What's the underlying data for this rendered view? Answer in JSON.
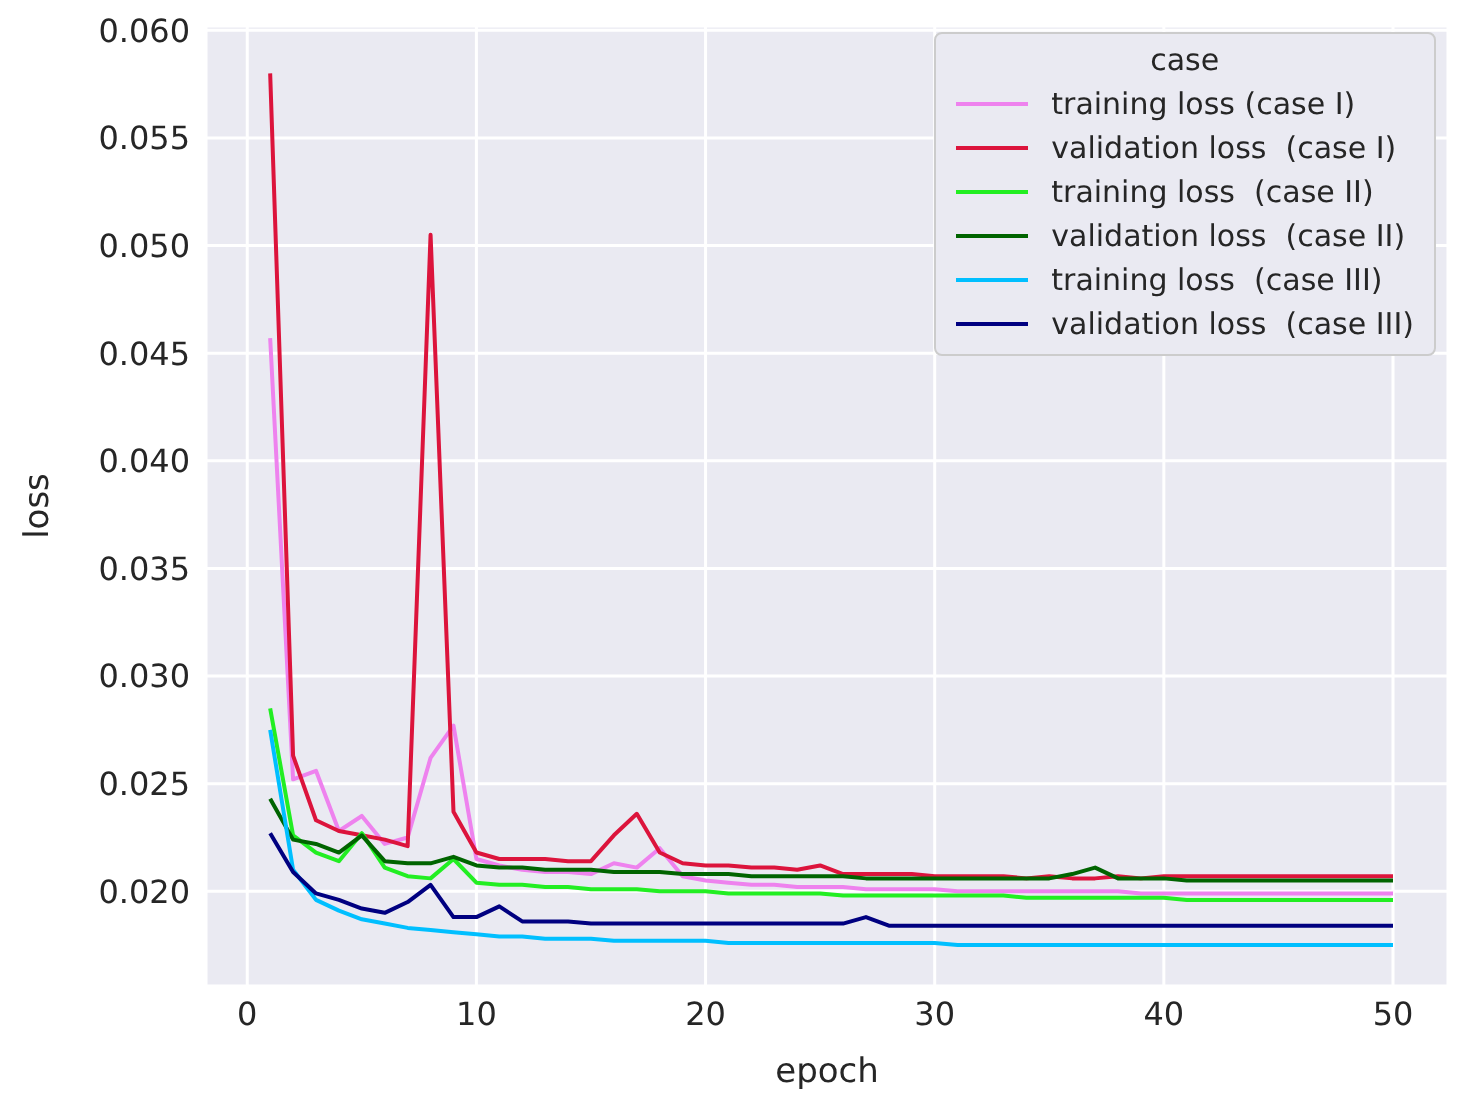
{
  "chart_data": {
    "type": "line",
    "xlabel": "epoch",
    "ylabel": "loss",
    "legend_title": "case",
    "grid": true,
    "legend": "top right",
    "x": [
      1,
      2,
      3,
      4,
      5,
      6,
      7,
      8,
      9,
      10,
      11,
      12,
      13,
      14,
      15,
      16,
      17,
      18,
      19,
      20,
      21,
      22,
      23,
      24,
      25,
      26,
      27,
      28,
      29,
      30,
      31,
      32,
      33,
      34,
      35,
      36,
      37,
      38,
      39,
      40,
      41,
      42,
      43,
      44,
      45,
      46,
      47,
      48,
      49,
      50
    ],
    "xlim": [
      -1.8,
      52.4
    ],
    "xticks": [
      0,
      10,
      20,
      30,
      40,
      50
    ],
    "ylim": [
      0.0156,
      0.0602
    ],
    "yticks": [
      {
        "value": 0.02,
        "label": "0.020"
      },
      {
        "value": 0.025,
        "label": "0.025"
      },
      {
        "value": 0.03,
        "label": "0.030"
      },
      {
        "value": 0.035,
        "label": "0.035"
      },
      {
        "value": 0.04,
        "label": "0.040"
      },
      {
        "value": 0.045,
        "label": "0.045"
      },
      {
        "value": 0.05,
        "label": "0.050"
      },
      {
        "value": 0.055,
        "label": "0.055"
      },
      {
        "value": 0.06,
        "label": "0.060"
      }
    ],
    "series": [
      {
        "name": "training loss (case I)",
        "color": "#ee82ee",
        "values": [
          0.0457,
          0.0252,
          0.0256,
          0.0228,
          0.0235,
          0.0222,
          0.0225,
          0.0262,
          0.0277,
          0.0215,
          0.0212,
          0.021,
          0.0209,
          0.0209,
          0.0208,
          0.0213,
          0.0211,
          0.022,
          0.0207,
          0.0205,
          0.0204,
          0.0203,
          0.0203,
          0.0202,
          0.0202,
          0.0202,
          0.0201,
          0.0201,
          0.0201,
          0.0201,
          0.02,
          0.02,
          0.02,
          0.02,
          0.02,
          0.02,
          0.02,
          0.02,
          0.0199,
          0.0199,
          0.0199,
          0.0199,
          0.0199,
          0.0199,
          0.0199,
          0.0199,
          0.0199,
          0.0199,
          0.0199,
          0.0199
        ]
      },
      {
        "name": "validation loss  (case I)",
        "color": "#dc143c",
        "values": [
          0.058,
          0.0263,
          0.0233,
          0.0228,
          0.0226,
          0.0224,
          0.0221,
          0.0505,
          0.0237,
          0.0218,
          0.0215,
          0.0215,
          0.0215,
          0.0214,
          0.0214,
          0.0226,
          0.0236,
          0.0218,
          0.0213,
          0.0212,
          0.0212,
          0.0211,
          0.0211,
          0.021,
          0.0212,
          0.0208,
          0.0208,
          0.0208,
          0.0208,
          0.0207,
          0.0207,
          0.0207,
          0.0207,
          0.0206,
          0.0207,
          0.0206,
          0.0206,
          0.0207,
          0.0206,
          0.0207,
          0.0207,
          0.0207,
          0.0207,
          0.0207,
          0.0207,
          0.0207,
          0.0207,
          0.0207,
          0.0207,
          0.0207
        ]
      },
      {
        "name": "training loss  (case II)",
        "color": "#22ee22",
        "values": [
          0.0285,
          0.0226,
          0.0218,
          0.0214,
          0.0227,
          0.0211,
          0.0207,
          0.0206,
          0.0215,
          0.0204,
          0.0203,
          0.0203,
          0.0202,
          0.0202,
          0.0201,
          0.0201,
          0.0201,
          0.02,
          0.02,
          0.02,
          0.0199,
          0.0199,
          0.0199,
          0.0199,
          0.0199,
          0.0198,
          0.0198,
          0.0198,
          0.0198,
          0.0198,
          0.0198,
          0.0198,
          0.0198,
          0.0197,
          0.0197,
          0.0197,
          0.0197,
          0.0197,
          0.0197,
          0.0197,
          0.0196,
          0.0196,
          0.0196,
          0.0196,
          0.0196,
          0.0196,
          0.0196,
          0.0196,
          0.0196,
          0.0196
        ]
      },
      {
        "name": "validation loss  (case II)",
        "color": "#006400",
        "values": [
          0.0243,
          0.0224,
          0.0222,
          0.0218,
          0.0226,
          0.0214,
          0.0213,
          0.0213,
          0.0216,
          0.0212,
          0.0211,
          0.0211,
          0.021,
          0.021,
          0.021,
          0.0209,
          0.0209,
          0.0209,
          0.0208,
          0.0208,
          0.0208,
          0.0207,
          0.0207,
          0.0207,
          0.0207,
          0.0207,
          0.0206,
          0.0206,
          0.0206,
          0.0206,
          0.0206,
          0.0206,
          0.0206,
          0.0206,
          0.0206,
          0.0208,
          0.0211,
          0.0206,
          0.0206,
          0.0206,
          0.0205,
          0.0205,
          0.0205,
          0.0205,
          0.0205,
          0.0205,
          0.0205,
          0.0205,
          0.0205,
          0.0205
        ]
      },
      {
        "name": "training loss  (case III)",
        "color": "#00bfff",
        "values": [
          0.0275,
          0.021,
          0.0196,
          0.0191,
          0.0187,
          0.0185,
          0.0183,
          0.0182,
          0.0181,
          0.018,
          0.0179,
          0.0179,
          0.0178,
          0.0178,
          0.0178,
          0.0177,
          0.0177,
          0.0177,
          0.0177,
          0.0177,
          0.0176,
          0.0176,
          0.0176,
          0.0176,
          0.0176,
          0.0176,
          0.0176,
          0.0176,
          0.0176,
          0.0176,
          0.0175,
          0.0175,
          0.0175,
          0.0175,
          0.0175,
          0.0175,
          0.0175,
          0.0175,
          0.0175,
          0.0175,
          0.0175,
          0.0175,
          0.0175,
          0.0175,
          0.0175,
          0.0175,
          0.0175,
          0.0175,
          0.0175,
          0.0175
        ]
      },
      {
        "name": "validation loss  (case III)",
        "color": "#000080",
        "values": [
          0.0227,
          0.0209,
          0.0199,
          0.0196,
          0.0192,
          0.019,
          0.0195,
          0.0203,
          0.0188,
          0.0188,
          0.0193,
          0.0186,
          0.0186,
          0.0186,
          0.0185,
          0.0185,
          0.0185,
          0.0185,
          0.0185,
          0.0185,
          0.0185,
          0.0185,
          0.0185,
          0.0185,
          0.0185,
          0.0185,
          0.0188,
          0.0184,
          0.0184,
          0.0184,
          0.0184,
          0.0184,
          0.0184,
          0.0184,
          0.0184,
          0.0184,
          0.0184,
          0.0184,
          0.0184,
          0.0184,
          0.0184,
          0.0184,
          0.0184,
          0.0184,
          0.0184,
          0.0184,
          0.0184,
          0.0184,
          0.0184,
          0.0184
        ]
      }
    ]
  }
}
